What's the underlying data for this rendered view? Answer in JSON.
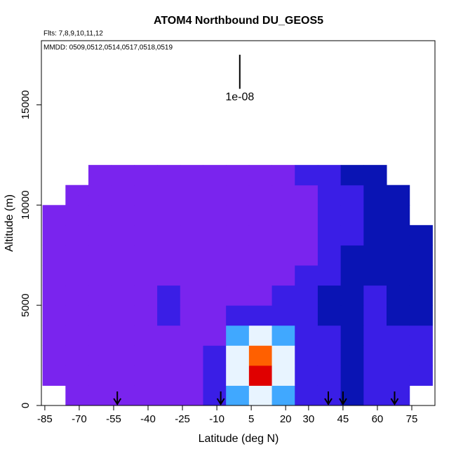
{
  "chart_data": {
    "type": "heatmap",
    "title": "ATOM4 Northbound DU_GEOS5",
    "subtitle": "Flts: 7,8,9,10,11,12",
    "annotation": "MMDD: 0509,0512,0514,0517,0518,0519",
    "xlabel": "Latitude (deg N)",
    "ylabel": "Altitude (m)",
    "xlim": [
      -86.5,
      85.1
    ],
    "ylim": [
      0,
      18200
    ],
    "xticks": [
      -85,
      -70,
      -55,
      -40,
      -25,
      -10,
      5,
      20,
      30,
      45,
      60,
      75
    ],
    "yticks": [
      0,
      5000,
      10000,
      15000
    ],
    "x_edges": [
      -86,
      -76,
      -66,
      -56,
      -46,
      -36,
      -26,
      -16,
      -6,
      4,
      14,
      24,
      34,
      44,
      54,
      64,
      74,
      84
    ],
    "y_edges": [
      0,
      1000,
      2000,
      3000,
      4000,
      5000,
      6000,
      7000,
      8000,
      9000,
      10000,
      11000,
      12000
    ],
    "z": [
      [
        null,
        3,
        3,
        3,
        3,
        3,
        3,
        2,
        4,
        5,
        4,
        2,
        2,
        1,
        2,
        2,
        null
      ],
      [
        3,
        3,
        3,
        3,
        3,
        3,
        3,
        2,
        5,
        9,
        5,
        2,
        2,
        1,
        2,
        2,
        2
      ],
      [
        3,
        3,
        3,
        3,
        3,
        3,
        3,
        2,
        5,
        8,
        5,
        2,
        2,
        1,
        2,
        2,
        2
      ],
      [
        3,
        3,
        3,
        3,
        3,
        3,
        3,
        3,
        4,
        5,
        4,
        2,
        2,
        1,
        2,
        2,
        2
      ],
      [
        3,
        3,
        3,
        3,
        3,
        2,
        3,
        3,
        2,
        2,
        2,
        2,
        1,
        1,
        2,
        1,
        1
      ],
      [
        3,
        3,
        3,
        3,
        3,
        2,
        3,
        3,
        3,
        3,
        2,
        2,
        1,
        1,
        2,
        1,
        1
      ],
      [
        3,
        3,
        3,
        3,
        3,
        3,
        3,
        3,
        3,
        3,
        3,
        2,
        2,
        1,
        1,
        1,
        1
      ],
      [
        3,
        3,
        3,
        3,
        3,
        3,
        3,
        3,
        3,
        3,
        3,
        3,
        2,
        1,
        1,
        1,
        1
      ],
      [
        3,
        3,
        3,
        3,
        3,
        3,
        3,
        3,
        3,
        3,
        3,
        3,
        2,
        2,
        1,
        1,
        1
      ],
      [
        3,
        3,
        3,
        3,
        3,
        3,
        3,
        3,
        3,
        3,
        3,
        3,
        2,
        2,
        1,
        1,
        null
      ],
      [
        null,
        3,
        3,
        3,
        3,
        3,
        3,
        3,
        3,
        3,
        3,
        3,
        2,
        2,
        1,
        1,
        null
      ],
      [
        null,
        null,
        3,
        3,
        3,
        3,
        3,
        3,
        3,
        3,
        3,
        2,
        2,
        1,
        1,
        null,
        null
      ]
    ],
    "colors": [
      "#00006e",
      "#0a14b4",
      "#3a1ee6",
      "#7a24ee",
      "#40a8ff",
      "#e8f4ff",
      "#ffe040",
      "#ffb000",
      "#ff6000",
      "#e00000"
    ],
    "scale_bar": {
      "label": "1e-08",
      "x": 0,
      "y": [
        15800,
        17500
      ]
    },
    "arrows": [
      -53.4,
      -8.3,
      38.6,
      45,
      67.5
    ],
    "arrow_top": 700
  }
}
